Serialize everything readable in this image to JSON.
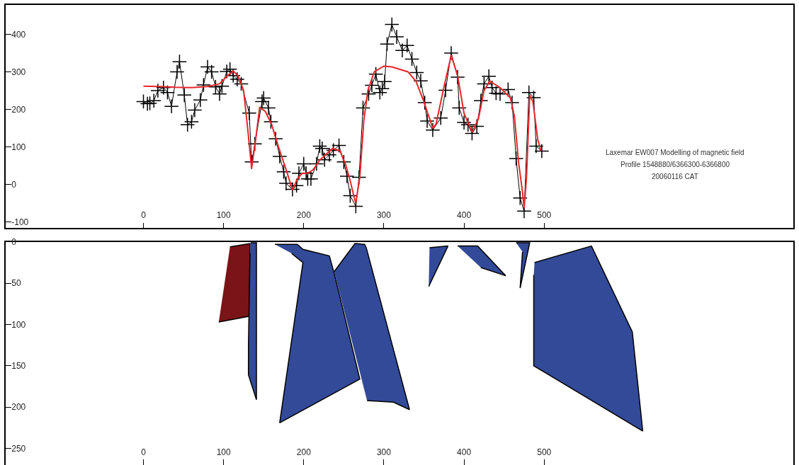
{
  "chart_data": [
    {
      "type": "line",
      "annotations": [
        "Laxemar EW007 Modelling of magnetic field",
        "Profile 1548880/6366300-6366800",
        "20060116 CAT"
      ],
      "xlim": [
        -172,
        811
      ],
      "xticks": [
        0,
        100,
        200,
        300,
        400,
        500
      ],
      "ylim": [
        -116,
        478
      ],
      "yticks": [
        -100,
        0,
        100,
        200,
        300,
        400
      ],
      "series": [
        {
          "color": "#000000",
          "marker": "cross",
          "line_style": "solid",
          "x": [
            0,
            5,
            8,
            13,
            18,
            25,
            30,
            35,
            42,
            45,
            51,
            55,
            60,
            64,
            71,
            75,
            80,
            85,
            90,
            95,
            98,
            104,
            108,
            112,
            117,
            122,
            132,
            135,
            139,
            148,
            150,
            156,
            159,
            165,
            170,
            175,
            178,
            186,
            191,
            194,
            200,
            203,
            205,
            209,
            216,
            220,
            223,
            226,
            232,
            237,
            244,
            250,
            254,
            258,
            265,
            269,
            274,
            281,
            285,
            290,
            295,
            298,
            301,
            304,
            310,
            316,
            323,
            329,
            335,
            341,
            346,
            351,
            354,
            361,
            371,
            377,
            384,
            392,
            394,
            400,
            405,
            410,
            416,
            421,
            425,
            431,
            435,
            440,
            445,
            455,
            460,
            465,
            470,
            475,
            481,
            487,
            490,
            497
          ],
          "values": [
            221,
            215,
            216,
            223,
            250,
            258,
            245,
            208,
            300,
            327,
            238,
            159,
            167,
            198,
            225,
            265,
            313,
            300,
            260,
            241,
            262,
            301,
            307,
            290,
            280,
            268,
            190,
            60,
            108,
            221,
            230,
            204,
            167,
            122,
            75,
            34,
            3,
            -13,
            -3,
            30,
            55,
            30,
            15,
            15,
            55,
            102,
            96,
            66,
            79,
            91,
            104,
            60,
            22,
            -30,
            -58,
            19,
            204,
            241,
            264,
            294,
            245,
            255,
            274,
            374,
            426,
            393,
            357,
            370,
            334,
            298,
            276,
            218,
            169,
            145,
            177,
            251,
            350,
            286,
            204,
            165,
            159,
            136,
            155,
            223,
            268,
            288,
            258,
            243,
            241,
            253,
            218,
            69,
            -36,
            -71,
            245,
            231,
            102,
            89
          ]
        },
        {
          "color": "#e8262a",
          "marker": "none",
          "line_style": "solid",
          "x": [
            0,
            20,
            40,
            60,
            80,
            95,
            105,
            112,
            118,
            125,
            130,
            135,
            140,
            145,
            152,
            160,
            170,
            178,
            186,
            192,
            198,
            205,
            212,
            220,
            236,
            245,
            252,
            258,
            263,
            265,
            270,
            275,
            280,
            288,
            300,
            310,
            330,
            340,
            350,
            361,
            365,
            375,
            384,
            392,
            400,
            410,
            418,
            425,
            432,
            445,
            458,
            463,
            468,
            473,
            475,
            478,
            482,
            486,
            492,
            496
          ],
          "values": [
            262,
            261,
            259,
            258,
            261,
            268,
            290,
            302,
            290,
            250,
            150,
            43,
            120,
            205,
            195,
            160,
            90,
            40,
            -15,
            15,
            30,
            30,
            40,
            65,
            96,
            90,
            55,
            10,
            -35,
            -50,
            20,
            170,
            250,
            300,
            315,
            313,
            300,
            275,
            220,
            150,
            160,
            260,
            344,
            290,
            190,
            139,
            175,
            250,
            275,
            258,
            230,
            180,
            60,
            -20,
            -63,
            20,
            238,
            220,
            120,
            90
          ]
        }
      ]
    },
    {
      "type": "area",
      "xlim": [
        -172,
        811
      ],
      "xticks": [
        0,
        100,
        200,
        300,
        400,
        500
      ],
      "ylim": [
        270,
        0
      ],
      "yticks": [
        0,
        50,
        100,
        150,
        200,
        250
      ],
      "series": [
        {
          "color": "#7b1418",
          "x": [
            108,
            133,
            132,
            94
          ],
          "values": [
            6,
            2,
            90,
            97
          ]
        },
        {
          "color": "#334a99",
          "x": [
            134,
            141,
            141,
            131,
            131,
            133
          ],
          "values": [
            1,
            1,
            191,
            161,
            125,
            14
          ]
        },
        {
          "color": "#334a99",
          "x": [
            164,
            192,
            199,
            232,
            238,
            270,
            170,
            199,
            185
          ],
          "values": [
            3,
            3,
            9,
            17,
            38,
            166,
            219,
            25,
            14
          ]
        },
        {
          "color": "#334a99",
          "x": [
            238,
            264,
            276,
            278,
            332,
            312,
            279
          ],
          "values": [
            36,
            2,
            3,
            7,
            203,
            194,
            192
          ]
        },
        {
          "color": "#334a99",
          "x": [
            357,
            380,
            356
          ],
          "values": [
            7,
            5,
            54
          ]
        },
        {
          "color": "#334a99",
          "x": [
            392,
            417,
            452,
            421
          ],
          "values": [
            5,
            5,
            41,
            31
          ]
        },
        {
          "color": "#334a99",
          "x": [
            465,
            482,
            470,
            473
          ],
          "values": [
            1,
            1,
            56,
            12
          ]
        },
        {
          "color": "#334a99",
          "x": [
            488,
            559,
            610,
            623,
            487,
            487
          ],
          "values": [
            25,
            5,
            109,
            229,
            150,
            40
          ]
        }
      ]
    }
  ]
}
